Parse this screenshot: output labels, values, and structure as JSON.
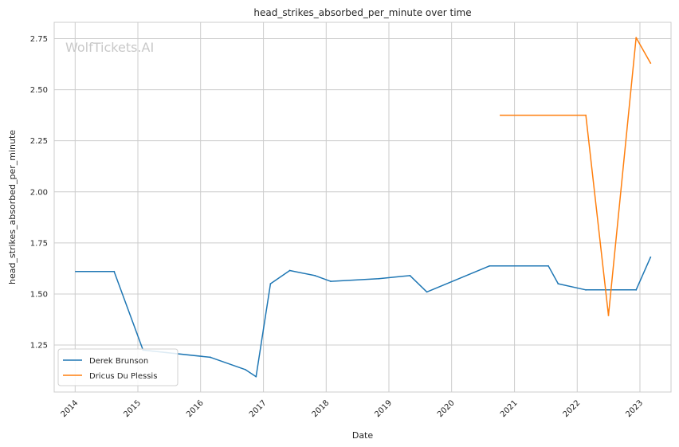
{
  "chart_data": {
    "type": "line",
    "title": "head_strikes_absorbed_per_minute over time",
    "xlabel": "Date",
    "ylabel": "head_strikes_absorbed_per_minute",
    "watermark": "WolfTickets.AI",
    "xlim": [
      "2013-09-01",
      "2023-07-01"
    ],
    "ylim": [
      1.02,
      2.83
    ],
    "x_ticks": [
      "2014",
      "2015",
      "2016",
      "2017",
      "2018",
      "2019",
      "2020",
      "2021",
      "2022",
      "2023"
    ],
    "y_ticks": [
      "1.25",
      "1.50",
      "1.75",
      "2.00",
      "2.25",
      "2.50",
      "2.75"
    ],
    "grid": true,
    "legend_position": "lower-left",
    "series": [
      {
        "name": "Derek Brunson",
        "color": "#1f77b4",
        "points": [
          {
            "x": "2014-01-04",
            "y": 1.61
          },
          {
            "x": "2014-08-16",
            "y": 1.61
          },
          {
            "x": "2015-01-31",
            "y": 1.225
          },
          {
            "x": "2016-02-27",
            "y": 1.19
          },
          {
            "x": "2016-09-17",
            "y": 1.13
          },
          {
            "x": "2016-11-19",
            "y": 1.095
          },
          {
            "x": "2017-02-11",
            "y": 1.55
          },
          {
            "x": "2017-06-03",
            "y": 1.615
          },
          {
            "x": "2017-10-28",
            "y": 1.59
          },
          {
            "x": "2018-01-27",
            "y": 1.562
          },
          {
            "x": "2018-11-03",
            "y": 1.575
          },
          {
            "x": "2019-05-04",
            "y": 1.59
          },
          {
            "x": "2019-08-10",
            "y": 1.51
          },
          {
            "x": "2020-08-08",
            "y": 1.637
          },
          {
            "x": "2021-07-17",
            "y": 1.637
          },
          {
            "x": "2021-09-12",
            "y": 1.55
          },
          {
            "x": "2022-02-20",
            "y": 1.52
          },
          {
            "x": "2022-12-10",
            "y": 1.52
          },
          {
            "x": "2023-03-04",
            "y": 1.68
          }
        ]
      },
      {
        "name": "Dricus Du Plessis",
        "color": "#ff7f0e",
        "points": [
          {
            "x": "2020-10-11",
            "y": 2.375
          },
          {
            "x": "2022-02-20",
            "y": 2.375
          },
          {
            "x": "2022-07-02",
            "y": 1.395
          },
          {
            "x": "2022-12-10",
            "y": 2.755
          },
          {
            "x": "2023-03-04",
            "y": 2.63
          }
        ]
      }
    ]
  }
}
